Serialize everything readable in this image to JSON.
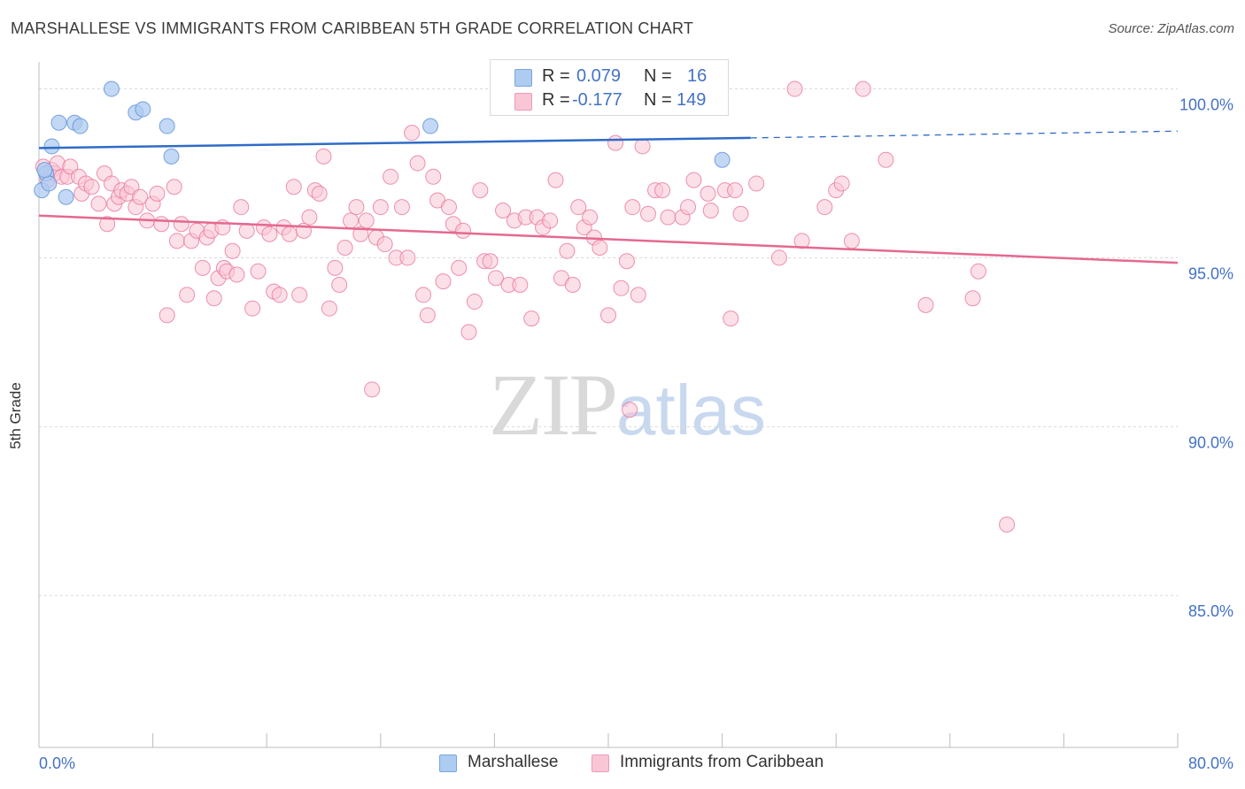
{
  "title": "MARSHALLESE VS IMMIGRANTS FROM CARIBBEAN 5TH GRADE CORRELATION CHART",
  "source": "Source: ZipAtlas.com",
  "watermark": {
    "zip": "ZIP",
    "atlas": "atlas"
  },
  "legend": {
    "r_label": "R =",
    "n_label": "N =",
    "rows": [
      {
        "name": "Marshallese",
        "r": "0.079",
        "n": "16",
        "color": "#a9c8f0",
        "border": "#7aa6dd"
      },
      {
        "name": "Immigrants from Caribbean",
        "r": "-0.177",
        "n": "149",
        "color": "#f9c6d6",
        "border": "#ee9bb6"
      }
    ]
  },
  "chart_data": {
    "type": "scatter",
    "title": "MARSHALLESE VS IMMIGRANTS FROM CARIBBEAN 5TH GRADE CORRELATION CHART",
    "xlabel": "",
    "ylabel": "5th Grade",
    "xlim": [
      0,
      80
    ],
    "ylim": [
      80.5,
      100.8
    ],
    "x_tick_labels": [
      "0.0%",
      "80.0%"
    ],
    "y_ticks": [
      100,
      95,
      90,
      85
    ],
    "y_tick_labels": [
      "100.0%",
      "95.0%",
      "90.0%",
      "85.0%"
    ],
    "grid": "horizontal dashed",
    "legend_position": "top-center",
    "series": [
      {
        "name": "Marshallese",
        "color": "#5b8fd6",
        "fill": "#aecbf0",
        "trend": {
          "x": [
            0,
            50
          ],
          "y": [
            98.25,
            98.55
          ],
          "dashed_extension_to": [
            80,
            98.75
          ],
          "color": "#2f6bc8"
        },
        "points": [
          [
            0.2,
            97.0
          ],
          [
            0.5,
            97.5
          ],
          [
            0.7,
            97.2
          ],
          [
            0.9,
            98.3
          ],
          [
            1.4,
            99.0
          ],
          [
            1.9,
            96.8
          ],
          [
            2.5,
            99.0
          ],
          [
            2.9,
            98.9
          ],
          [
            5.1,
            100.0
          ],
          [
            6.8,
            99.3
          ],
          [
            7.3,
            99.4
          ],
          [
            9.0,
            98.9
          ],
          [
            9.3,
            98.0
          ],
          [
            27.5,
            98.9
          ],
          [
            48.0,
            97.9
          ],
          [
            0.4,
            97.6
          ]
        ]
      },
      {
        "name": "Immigrants from Caribbean",
        "color": "#e8769c",
        "fill": "#f9c6d6",
        "trend": {
          "x": [
            0,
            80
          ],
          "y": [
            96.25,
            94.85
          ],
          "color": "#e5698f"
        },
        "points": [
          [
            0.3,
            97.7
          ],
          [
            0.6,
            97.3
          ],
          [
            0.9,
            97.6
          ],
          [
            1.1,
            97.5
          ],
          [
            1.3,
            97.8
          ],
          [
            1.6,
            97.4
          ],
          [
            2.0,
            97.4
          ],
          [
            2.2,
            97.7
          ],
          [
            2.8,
            97.4
          ],
          [
            3.0,
            96.9
          ],
          [
            3.3,
            97.2
          ],
          [
            3.7,
            97.1
          ],
          [
            4.2,
            96.6
          ],
          [
            4.6,
            97.5
          ],
          [
            4.8,
            96.0
          ],
          [
            5.1,
            97.2
          ],
          [
            5.3,
            96.6
          ],
          [
            5.6,
            96.8
          ],
          [
            5.8,
            97.0
          ],
          [
            6.2,
            96.9
          ],
          [
            6.5,
            97.1
          ],
          [
            6.8,
            96.5
          ],
          [
            7.1,
            96.8
          ],
          [
            7.6,
            96.1
          ],
          [
            8.0,
            96.6
          ],
          [
            8.3,
            96.9
          ],
          [
            8.6,
            96.0
          ],
          [
            9.5,
            97.1
          ],
          [
            9.7,
            95.5
          ],
          [
            10.0,
            96.0
          ],
          [
            10.4,
            93.9
          ],
          [
            10.7,
            95.5
          ],
          [
            11.1,
            95.8
          ],
          [
            11.5,
            94.7
          ],
          [
            11.8,
            95.6
          ],
          [
            12.1,
            95.8
          ],
          [
            12.3,
            93.8
          ],
          [
            12.6,
            94.4
          ],
          [
            13.0,
            94.7
          ],
          [
            13.2,
            94.6
          ],
          [
            13.6,
            95.2
          ],
          [
            13.9,
            94.5
          ],
          [
            14.2,
            96.5
          ],
          [
            14.6,
            95.8
          ],
          [
            15.0,
            93.5
          ],
          [
            15.4,
            94.6
          ],
          [
            15.8,
            95.9
          ],
          [
            16.2,
            95.7
          ],
          [
            16.5,
            94.0
          ],
          [
            16.9,
            93.9
          ],
          [
            17.2,
            95.9
          ],
          [
            17.6,
            95.7
          ],
          [
            17.9,
            97.1
          ],
          [
            18.3,
            93.9
          ],
          [
            18.6,
            95.8
          ],
          [
            19.0,
            96.2
          ],
          [
            19.4,
            97.0
          ],
          [
            19.7,
            96.9
          ],
          [
            20.0,
            98.0
          ],
          [
            20.4,
            93.5
          ],
          [
            20.8,
            94.7
          ],
          [
            21.1,
            94.2
          ],
          [
            21.5,
            95.3
          ],
          [
            21.9,
            96.1
          ],
          [
            22.3,
            96.5
          ],
          [
            22.6,
            95.7
          ],
          [
            23.0,
            96.1
          ],
          [
            23.4,
            91.1
          ],
          [
            23.7,
            95.6
          ],
          [
            24.0,
            96.5
          ],
          [
            24.3,
            95.4
          ],
          [
            24.7,
            97.4
          ],
          [
            25.1,
            95.0
          ],
          [
            25.5,
            96.5
          ],
          [
            25.9,
            95.0
          ],
          [
            26.2,
            98.7
          ],
          [
            26.6,
            97.8
          ],
          [
            27.0,
            93.9
          ],
          [
            27.3,
            93.3
          ],
          [
            27.7,
            97.4
          ],
          [
            28.0,
            96.7
          ],
          [
            28.4,
            94.3
          ],
          [
            28.8,
            96.5
          ],
          [
            29.1,
            96.0
          ],
          [
            29.5,
            94.7
          ],
          [
            29.8,
            95.8
          ],
          [
            30.2,
            92.8
          ],
          [
            30.6,
            93.7
          ],
          [
            31.0,
            97.0
          ],
          [
            31.3,
            94.9
          ],
          [
            31.7,
            94.9
          ],
          [
            32.1,
            94.4
          ],
          [
            32.6,
            96.4
          ],
          [
            33.0,
            94.2
          ],
          [
            33.4,
            96.1
          ],
          [
            33.8,
            94.2
          ],
          [
            34.2,
            96.2
          ],
          [
            34.6,
            93.2
          ],
          [
            35.0,
            96.2
          ],
          [
            35.4,
            95.9
          ],
          [
            35.9,
            96.1
          ],
          [
            36.3,
            97.3
          ],
          [
            36.7,
            94.4
          ],
          [
            37.1,
            95.2
          ],
          [
            37.5,
            94.2
          ],
          [
            37.9,
            96.5
          ],
          [
            38.3,
            95.9
          ],
          [
            38.7,
            96.2
          ],
          [
            39.0,
            95.6
          ],
          [
            39.4,
            95.3
          ],
          [
            40.0,
            93.3
          ],
          [
            40.5,
            98.4
          ],
          [
            40.9,
            94.1
          ],
          [
            41.3,
            94.9
          ],
          [
            41.7,
            96.5
          ],
          [
            42.1,
            93.9
          ],
          [
            42.4,
            98.3
          ],
          [
            42.8,
            96.3
          ],
          [
            43.3,
            97.0
          ],
          [
            43.8,
            97.0
          ],
          [
            44.2,
            96.2
          ],
          [
            45.2,
            96.2
          ],
          [
            45.6,
            96.5
          ],
          [
            46.0,
            97.3
          ],
          [
            47.0,
            96.9
          ],
          [
            47.2,
            96.4
          ],
          [
            48.2,
            97.0
          ],
          [
            48.6,
            93.2
          ],
          [
            48.9,
            97.0
          ],
          [
            49.3,
            96.3
          ],
          [
            50.4,
            97.2
          ],
          [
            52.0,
            95.0
          ],
          [
            53.1,
            100.0
          ],
          [
            53.6,
            95.5
          ],
          [
            55.2,
            96.5
          ],
          [
            56.0,
            97.0
          ],
          [
            56.4,
            97.2
          ],
          [
            57.1,
            95.5
          ],
          [
            57.9,
            100.0
          ],
          [
            59.5,
            97.9
          ],
          [
            62.3,
            93.6
          ],
          [
            65.6,
            93.8
          ],
          [
            66.0,
            94.6
          ],
          [
            68.0,
            87.1
          ],
          [
            41.5,
            90.5
          ],
          [
            9.0,
            93.3
          ],
          [
            12.9,
            95.9
          ]
        ]
      }
    ]
  },
  "bottom_legend": [
    "Marshallese",
    "Immigrants from Caribbean"
  ]
}
